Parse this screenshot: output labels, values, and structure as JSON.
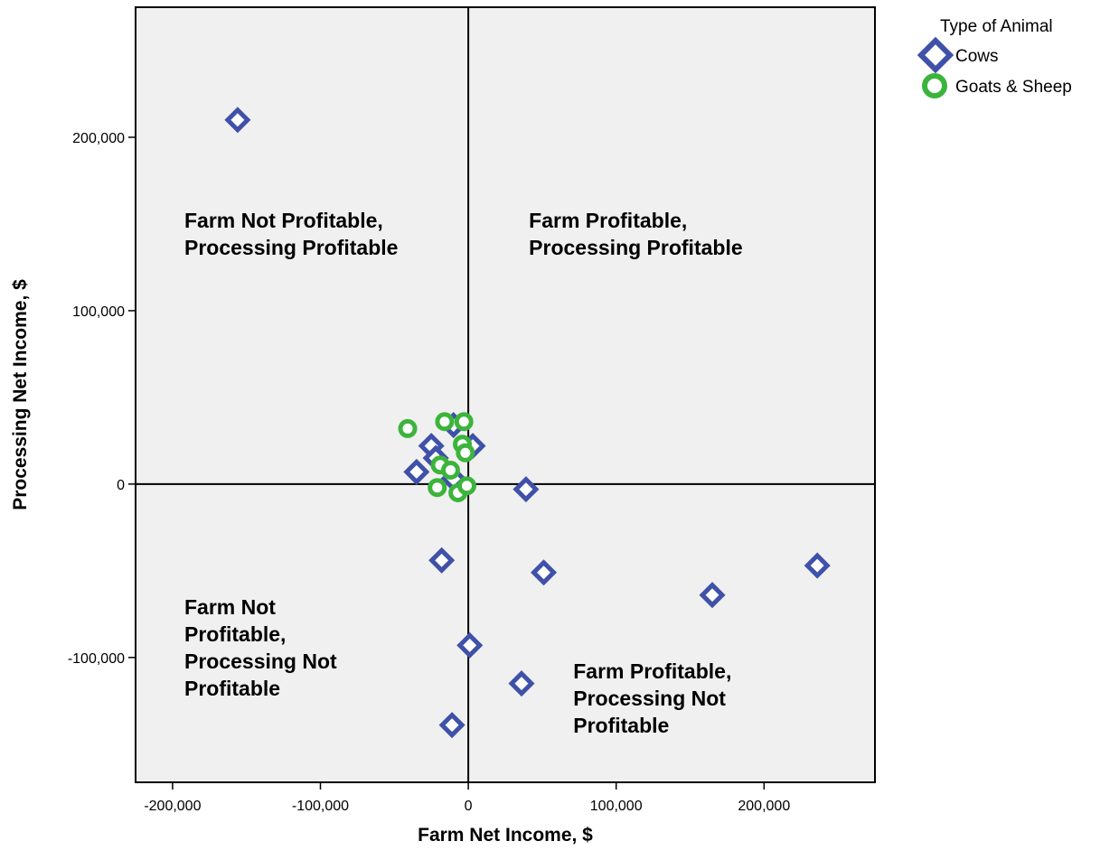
{
  "chart_data": {
    "type": "scatter",
    "xlabel": "Farm Net Income, $",
    "ylabel": "Processing Net Income, $",
    "xlim": [
      -225000,
      275000
    ],
    "ylim": [
      -172000,
      275000
    ],
    "x_ticks": [
      {
        "value": -200000,
        "label": "-200,000"
      },
      {
        "value": -100000,
        "label": "-100,000"
      },
      {
        "value": 0,
        "label": "0"
      },
      {
        "value": 100000,
        "label": "100,000"
      },
      {
        "value": 200000,
        "label": "200,000"
      }
    ],
    "y_ticks": [
      {
        "value": 200000,
        "label": "200,000"
      },
      {
        "value": 100000,
        "label": "100,000"
      },
      {
        "value": 0,
        "label": "0"
      },
      {
        "value": -100000,
        "label": "-100,000"
      }
    ],
    "reference_lines": {
      "x": 0,
      "y": 0
    },
    "grid": false,
    "plot_background": "#f0f0f0",
    "legend": {
      "title": "Type of Animal",
      "placement": "top-right, outside plot"
    },
    "series": [
      {
        "name": "Cows",
        "marker": "diamond",
        "color": "#3f51a8",
        "points": [
          {
            "x": -156000,
            "y": 210000
          },
          {
            "x": -10000,
            "y": 34000
          },
          {
            "x": 3000,
            "y": 22000
          },
          {
            "x": -25000,
            "y": 22000
          },
          {
            "x": -22000,
            "y": 15000
          },
          {
            "x": -35000,
            "y": 7000
          },
          {
            "x": -10000,
            "y": 3000
          },
          {
            "x": 39000,
            "y": -3000
          },
          {
            "x": -18000,
            "y": -44000
          },
          {
            "x": 51000,
            "y": -51000
          },
          {
            "x": 165000,
            "y": -64000
          },
          {
            "x": 236000,
            "y": -47000
          },
          {
            "x": 1000,
            "y": -93000
          },
          {
            "x": 36000,
            "y": -115000
          },
          {
            "x": -11000,
            "y": -139000
          }
        ]
      },
      {
        "name": "Goats & Sheep",
        "marker": "circle",
        "color": "#3cb43c",
        "points": [
          {
            "x": -41000,
            "y": 32000
          },
          {
            "x": -16000,
            "y": 36000
          },
          {
            "x": -3000,
            "y": 36000
          },
          {
            "x": -4000,
            "y": 23000
          },
          {
            "x": -2000,
            "y": 18000
          },
          {
            "x": -19000,
            "y": 11000
          },
          {
            "x": -12000,
            "y": 8000
          },
          {
            "x": -21000,
            "y": -2000
          },
          {
            "x": -7000,
            "y": -5000
          },
          {
            "x": -1000,
            "y": -1000
          }
        ]
      }
    ],
    "annotations": [
      {
        "lines": [
          "Farm Not Profitable,",
          "Processing Profitable"
        ],
        "quadrant": "upper-left",
        "x": -192000,
        "y": 148000
      },
      {
        "lines": [
          "Farm Profitable,",
          "Processing Profitable"
        ],
        "quadrant": "upper-right",
        "x": 41000,
        "y": 148000
      },
      {
        "lines": [
          "Farm Not",
          "Profitable,",
          "Processing Not",
          "Profitable"
        ],
        "quadrant": "lower-left",
        "x": -192000,
        "y": -75000
      },
      {
        "lines": [
          "Farm Profitable,",
          "Processing Not",
          "Profitable"
        ],
        "quadrant": "lower-right",
        "x": 71000,
        "y": -112000
      }
    ]
  }
}
